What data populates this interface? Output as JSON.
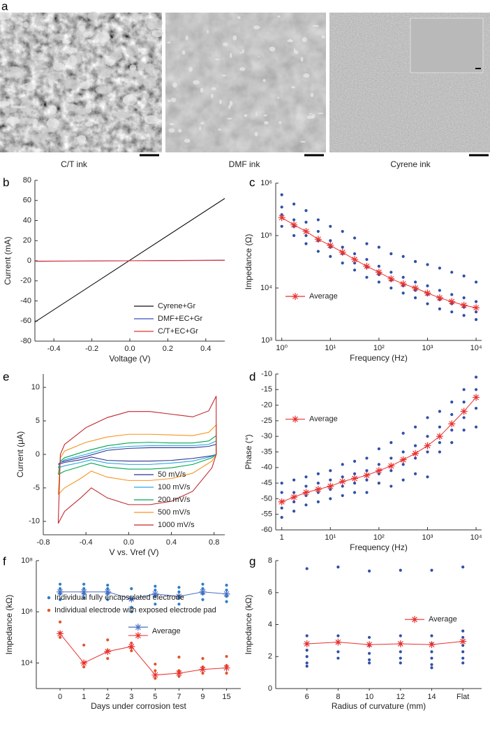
{
  "panel_a": {
    "label": "a",
    "captions": [
      "C/T ink",
      "DMF ink",
      "Cyrene ink"
    ]
  },
  "chart_data": [
    {
      "panel": "b",
      "type": "line",
      "xlabel": "Voltage (V)",
      "ylabel": "Current (mA)",
      "xlim": [
        -0.5,
        0.5
      ],
      "xticks": [
        -0.4,
        -0.2,
        {
          "value": 0,
          "label": "0.0"
        },
        0.2,
        0.4
      ],
      "ylim": [
        -80,
        80
      ],
      "yticks": [
        -80,
        -60,
        -40,
        -20,
        0,
        20,
        40,
        60,
        80
      ],
      "x": [
        -0.5,
        0.5
      ],
      "legend_position": "lower right",
      "series": [
        {
          "name": "Cyrene+Gr",
          "color": "#111111",
          "values": [
            -61,
            62
          ]
        },
        {
          "name": "DMF+EC+Gr",
          "color": "#3b4cc0",
          "values": [
            -0.6,
            0.6
          ]
        },
        {
          "name": "C/T+EC+Gr",
          "color": "#e8312f",
          "values": [
            -0.4,
            0.4
          ]
        }
      ]
    },
    {
      "panel": "c",
      "type": "scatter",
      "xlabel": "Frequency (Hz)",
      "ylabel": "Impedance (Ω)",
      "xlog": true,
      "ylog": true,
      "xlim": [
        0.75,
        13000
      ],
      "ylim": [
        1000,
        1000000
      ],
      "xticks": [
        {
          "value": 1,
          "label": "10⁰"
        },
        {
          "value": 10,
          "label": "10¹"
        },
        {
          "value": 100,
          "label": "10²"
        },
        {
          "value": 1000,
          "label": "10³"
        },
        {
          "value": 10000,
          "label": "10⁴"
        }
      ],
      "yticks": [
        {
          "value": 1000,
          "label": "10³"
        },
        {
          "value": 10000,
          "label": "10⁴"
        },
        {
          "value": 100000,
          "label": "10⁵"
        },
        {
          "value": 1000000,
          "label": "10⁶"
        }
      ],
      "legend_position": "center left",
      "x": [
        1,
        1.78,
        3.16,
        5.62,
        10,
        17.8,
        31.6,
        56.2,
        100,
        178,
        316,
        562,
        1000,
        1780,
        3160,
        5620,
        10000
      ],
      "series": [
        {
          "color": "#2f4fa8",
          "values": [
            [
              600000,
              350000,
              250000,
              150000
            ],
            [
              400000,
              200000,
              150000,
              100000
            ],
            [
              300000,
              180000,
              100000,
              70000
            ],
            [
              200000,
              120000,
              80000,
              50000
            ],
            [
              150000,
              80000,
              60000,
              40000
            ],
            [
              120000,
              60000,
              45000,
              30000
            ],
            [
              90000,
              45000,
              30000,
              22000
            ],
            [
              70000,
              35000,
              25000,
              16000
            ],
            [
              60000,
              26000,
              18000,
              13000
            ],
            [
              45000,
              20000,
              14000,
              10000
            ],
            [
              40000,
              16000,
              11000,
              8000
            ],
            [
              32000,
              13000,
              9000,
              6500
            ],
            [
              28000,
              11000,
              7500,
              5000
            ],
            [
              24000,
              9000,
              6000,
              4000
            ],
            [
              20000,
              7500,
              5000,
              3500
            ],
            [
              17000,
              6500,
              4300,
              3000
            ],
            [
              13000,
              5500,
              3500,
              2500
            ]
          ]
        },
        {
          "name": "Average",
          "color": "#e8312f",
          "marker": "star",
          "values": [
            220000,
            160000,
            120000,
            85000,
            65000,
            48000,
            35000,
            26000,
            20000,
            15000,
            12000,
            10000,
            8000,
            6500,
            5500,
            4700,
            4200
          ]
        }
      ]
    },
    {
      "panel": "e",
      "type": "line",
      "xlabel": "V vs. Vref (V)",
      "ylabel": "Current (μA)",
      "xlim": [
        -0.8,
        0.9
      ],
      "xticks": [
        -0.8,
        -0.4,
        {
          "value": 0,
          "label": "0.0"
        },
        0.4,
        0.8
      ],
      "ylim": [
        -12,
        12
      ],
      "yticks": [
        -10,
        -5,
        0,
        5,
        10
      ],
      "legend_position": "lower right",
      "x": [
        -0.66,
        -0.64,
        -0.6,
        -0.4,
        -0.2,
        0,
        0.2,
        0.4,
        0.6,
        0.75,
        0.82,
        0.82,
        0.78,
        0.6,
        0.4,
        0.2,
        0,
        -0.2,
        -0.35,
        -0.45,
        -0.6,
        -0.66
      ],
      "series": [
        {
          "name": "50 mV/s",
          "color": "#2e3192",
          "values": [
            -1.5,
            -1.2,
            -1,
            -0.3,
            0.6,
            0.9,
            1,
            1,
            1,
            1.2,
            1.5,
            0,
            -0.2,
            -0.6,
            -0.9,
            -1,
            -1,
            -0.9,
            -0.4,
            -0.8,
            -1.2,
            -1.5
          ]
        },
        {
          "name": "100 mV/s",
          "color": "#29a9e0",
          "values": [
            -2,
            -1.2,
            -0.8,
            0,
            0.9,
            1.2,
            1.3,
            1.3,
            1.3,
            1.5,
            2,
            0,
            -0.3,
            -1,
            -1.3,
            -1.5,
            -1.5,
            -1.3,
            -0.8,
            -1.2,
            -1.7,
            -2
          ]
        },
        {
          "name": "200 mV/s",
          "color": "#00a651",
          "values": [
            -3,
            -1,
            -0.5,
            0.5,
            1.3,
            1.7,
            1.8,
            1.7,
            1.7,
            2,
            2.8,
            0,
            -0.5,
            -1.5,
            -2,
            -2.2,
            -2.2,
            -1.9,
            -1.3,
            -1.8,
            -2.5,
            -3
          ]
        },
        {
          "name": "500 mV/s",
          "color": "#f7931e",
          "values": [
            -6,
            -0.5,
            0.5,
            1.8,
            2.6,
            3,
            3,
            2.9,
            2.8,
            3.3,
            4.4,
            0,
            -1,
            -2.8,
            -3.6,
            -3.9,
            -3.9,
            -3.4,
            -2.5,
            -3.6,
            -5,
            -6
          ]
        },
        {
          "name": "1000 mV/s",
          "color": "#c1272d",
          "values": [
            -10.3,
            0,
            1.5,
            4,
            5.5,
            6.4,
            6.4,
            6,
            5.6,
            6.5,
            8.7,
            0,
            -2,
            -5.5,
            -7,
            -7.5,
            -7.5,
            -6.5,
            -5,
            -6.5,
            -8.5,
            -10.3
          ]
        }
      ]
    },
    {
      "panel": "d",
      "type": "scatter",
      "xlabel": "Frequency (Hz)",
      "ylabel": "Phase (°)",
      "xlog": true,
      "xlim": [
        0.75,
        13000
      ],
      "ylim": [
        -60,
        -10
      ],
      "xticks": [
        1,
        {
          "value": 10,
          "label": "10¹"
        },
        {
          "value": 100,
          "label": "10²"
        },
        {
          "value": 1000,
          "label": "10³"
        },
        {
          "value": 10000,
          "label": "10⁴"
        }
      ],
      "yticks": [
        -60,
        -55,
        -50,
        -45,
        -40,
        -35,
        -30,
        -25,
        -20,
        -15,
        -10
      ],
      "legend_position": "upper left",
      "x": [
        1,
        1.78,
        3.16,
        5.62,
        10,
        17.8,
        31.6,
        56.2,
        100,
        178,
        316,
        562,
        1000,
        1780,
        3160,
        5620,
        10000
      ],
      "series": [
        {
          "color": "#2f4fa8",
          "values": [
            [
              -45,
              -48,
              -53,
              -56
            ],
            [
              -44,
              -48,
              -51,
              -54
            ],
            [
              -43,
              -46,
              -49,
              -52
            ],
            [
              -42,
              -45,
              -48,
              -51
            ],
            [
              -41,
              -44,
              -47,
              -50
            ],
            [
              -39,
              -43,
              -46,
              -49
            ],
            [
              -38,
              -42,
              -45,
              -48
            ],
            [
              -37,
              -41,
              -44,
              -48
            ],
            [
              -34,
              -39,
              -42,
              -45
            ],
            [
              -32,
              -37,
              -41,
              -46
            ],
            [
              -29,
              -35,
              -39,
              -44
            ],
            [
              -27,
              -33,
              -37,
              -42
            ],
            [
              -24,
              -30,
              -35,
              -43
            ],
            [
              -22,
              -27,
              -32,
              -35
            ],
            [
              -19,
              -23,
              -28,
              -32
            ],
            [
              -15,
              -19,
              -24,
              -28
            ],
            [
              -11,
              -15,
              -21,
              -27
            ]
          ]
        },
        {
          "name": "Average",
          "color": "#e8312f",
          "marker": "star",
          "values": [
            -51,
            -49.5,
            -48,
            -47,
            -46,
            -44.5,
            -43.5,
            -42.5,
            -41,
            -39.5,
            -37.5,
            -35.5,
            -33,
            -30,
            -26,
            -22,
            -17.5
          ]
        }
      ]
    },
    {
      "panel": "f",
      "type": "scatter",
      "xlabel": "Days under corrosion test",
      "ylabel": "Impedance (kΩ)",
      "ylog": true,
      "ylim": [
        1000,
        100000000
      ],
      "yticks": [
        {
          "value": 10000,
          "label": "10⁴"
        },
        {
          "value": 1000000,
          "label": "10⁶"
        },
        {
          "value": 100000000,
          "label": "10⁸"
        }
      ],
      "categories": [
        "0",
        "1",
        "2",
        "3",
        "5",
        "7",
        "9",
        "15"
      ],
      "legend_position": "upper left",
      "series": [
        {
          "name": "Individual fully encapsulated electrode",
          "color": "#2a7fc9",
          "values": [
            [
              12000000,
              8000000,
              5000000,
              3000000
            ],
            [
              12000000,
              8000000,
              5000000,
              3500000
            ],
            [
              11000000,
              8000000,
              5000000,
              3000000
            ],
            [
              8000000,
              3000000,
              1500000,
              1000000
            ],
            [
              10000000,
              7000000,
              4000000,
              2000000
            ],
            [
              9000000,
              6000000,
              3500000,
              2000000
            ],
            [
              12000000,
              8000000,
              5000000,
              3000000
            ],
            [
              11000000,
              7000000,
              4000000,
              2500000
            ]
          ]
        },
        {
          "name": "Individual electrode with exposed electrode pad",
          "color": "#e0552a",
          "values": [
            [
              400000,
              150000,
              100000
            ],
            [
              50000,
              10000,
              7000
            ],
            [
              80000,
              30000,
              15000
            ],
            [
              60000,
              40000,
              30000
            ],
            [
              9000,
              5000,
              2500
            ],
            [
              17000,
              5000,
              3000
            ],
            [
              15000,
              7000,
              4000
            ],
            [
              18000,
              8000,
              4000
            ]
          ]
        },
        {
          "name": "Average",
          "legend_position": "center",
          "color": "#4a6fc4",
          "marker": "star",
          "values": [
            6000000,
            6000000,
            6000000,
            3200000,
            5000000,
            4000000,
            6000000,
            5000000
          ]
        },
        {
          "color": "#e8312f",
          "marker": "star",
          "values": [
            140000,
            10000,
            28000,
            44000,
            3400,
            4000,
            5600,
            6400
          ]
        }
      ]
    },
    {
      "panel": "g",
      "type": "scatter",
      "xlabel": "Radius of curvature (mm)",
      "ylabel": "Impedance (kΩ)",
      "ylim": [
        0,
        8
      ],
      "yticks": [
        0,
        2,
        4,
        6,
        8
      ],
      "categories": [
        "6",
        "8",
        "10",
        "12",
        "14",
        "Flat"
      ],
      "legend_position": "center right",
      "series": [
        {
          "color": "#2f4fa8",
          "values": [
            [
              7.5,
              3.3,
              2.8,
              2.4,
              2.0,
              1.6,
              1.4
            ],
            [
              7.6,
              3.3,
              2.9,
              2.3,
              1.9
            ],
            [
              7.35,
              3.2,
              2.7,
              2.2,
              1.8,
              1.6
            ],
            [
              7.4,
              3.3,
              2.8,
              2.3,
              1.9,
              1.6
            ],
            [
              7.4,
              3.3,
              2.8,
              2.3,
              1.9,
              1.5,
              1.3
            ],
            [
              7.6,
              3.6,
              3.2,
              2.7,
              2.3,
              1.9,
              1.6
            ]
          ]
        },
        {
          "name": "Average",
          "color": "#e8312f",
          "marker": "star",
          "values": [
            2.8,
            2.9,
            2.75,
            2.8,
            2.75,
            2.95
          ]
        }
      ]
    }
  ]
}
